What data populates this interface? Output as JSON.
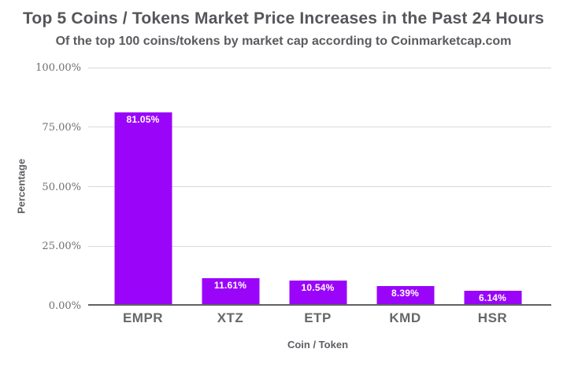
{
  "chart_data": {
    "type": "bar",
    "title": "Top 5 Coins / Tokens Market Price Increases in the Past 24 Hours",
    "subtitle": "Of the top 100 coins/tokens by market cap according to Coinmarketcap.com",
    "categories": [
      "EMPR",
      "XTZ",
      "ETP",
      "KMD",
      "HSR"
    ],
    "values": [
      81.05,
      11.61,
      10.54,
      8.39,
      6.14
    ],
    "data_labels": [
      "81.05%",
      "11.61%",
      "10.54%",
      "8.39%",
      "6.14%"
    ],
    "xlabel": "Coin / Token",
    "ylabel": "Percentage",
    "ylim": [
      0,
      100
    ],
    "yticks": [
      {
        "value": 100,
        "label": "100.00%"
      },
      {
        "value": 75,
        "label": "75.00%"
      },
      {
        "value": 50,
        "label": "50.00%"
      },
      {
        "value": 25,
        "label": "25.00%"
      },
      {
        "value": 0,
        "label": "0.00%"
      }
    ],
    "grid": true,
    "legend": "none"
  },
  "colors": {
    "bar": "#9a05fa",
    "gridline": "#d9d9d9",
    "axis_line": "#616161",
    "title_text": "#55565a",
    "category_text": "#66676b",
    "tick_text": "#6e6f71",
    "value_label_text": "#ffffff",
    "background": "#ffffff"
  }
}
